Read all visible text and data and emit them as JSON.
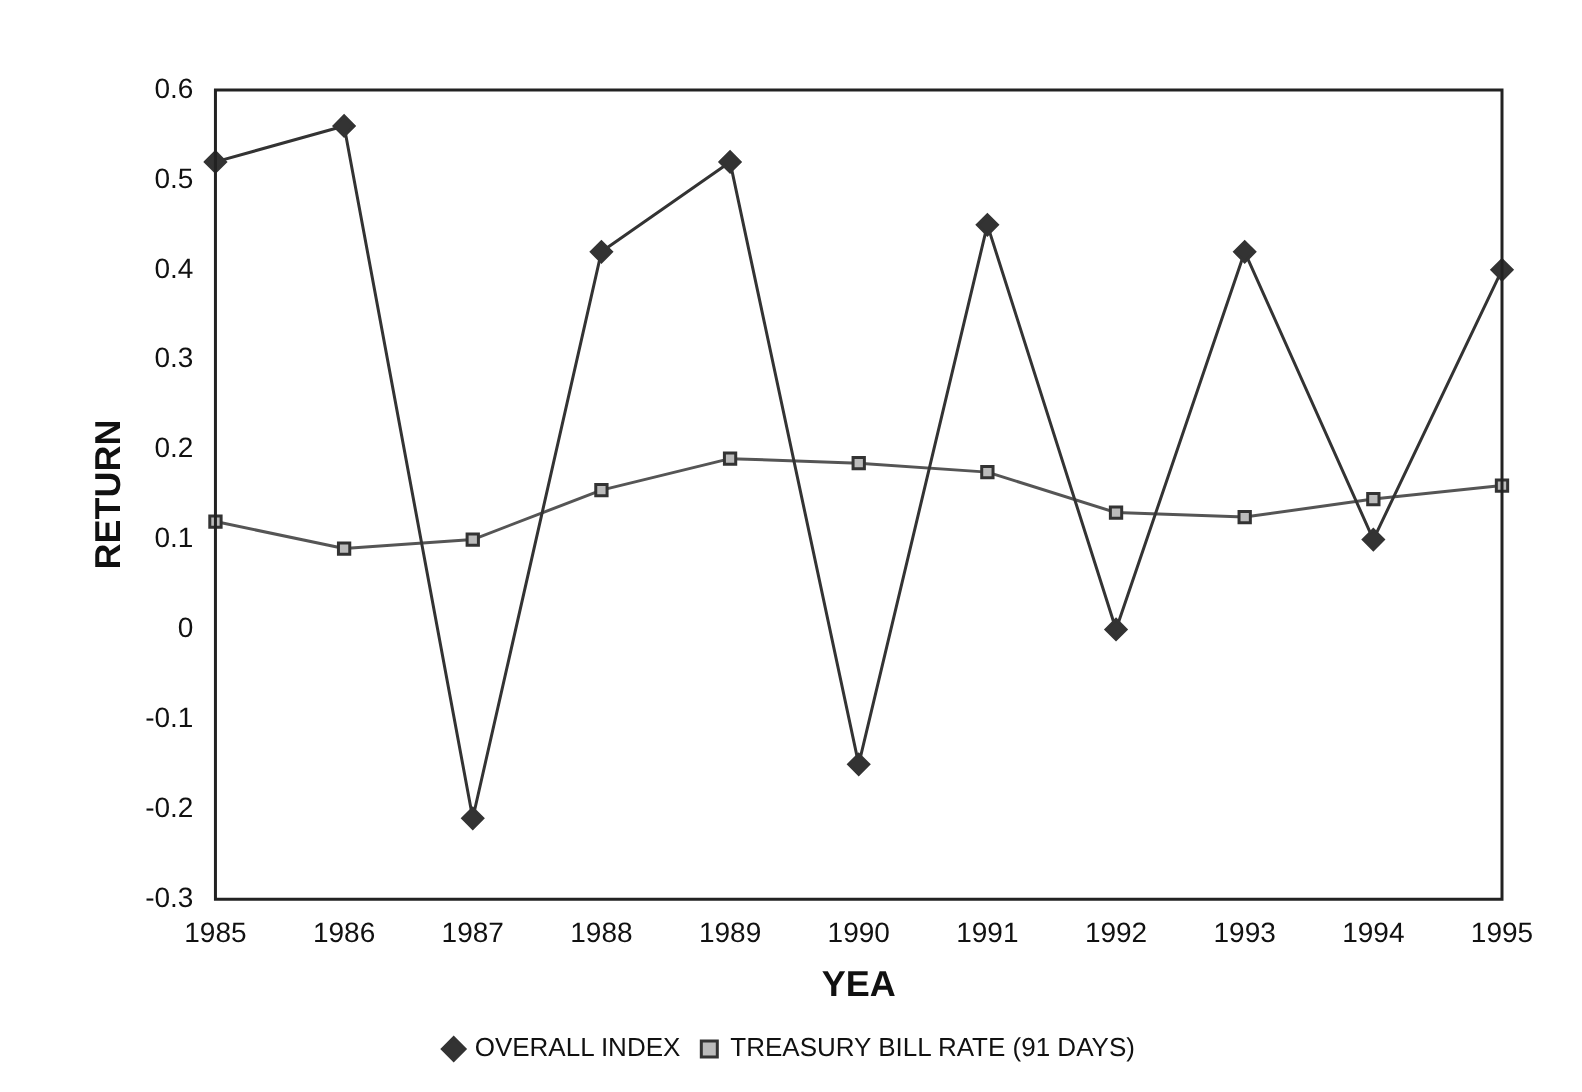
{
  "chart_data": {
    "type": "line",
    "xlabel": "YEA",
    "ylabel": "RETURN",
    "categories": [
      "1985",
      "1986",
      "1987",
      "1988",
      "1989",
      "1990",
      "1991",
      "1992",
      "1993",
      "1994",
      "1995"
    ],
    "ylim": [
      -0.3,
      0.6
    ],
    "yticks": [
      -0.3,
      -0.2,
      -0.1,
      0,
      0.1,
      0.2,
      0.3,
      0.4,
      0.5,
      0.6
    ],
    "grid": false,
    "legend": "bottom",
    "line_style": "solid",
    "series": [
      {
        "name": "OVERALL INDEX",
        "color": "#333333",
        "marker": "diamond",
        "values": [
          0.52,
          0.56,
          -0.21,
          0.42,
          0.52,
          -0.15,
          0.45,
          0.0,
          0.42,
          0.1,
          0.4
        ]
      },
      {
        "name": "TREASURY BILL RATE (91 DAYS)",
        "color": "#555555",
        "marker": "square",
        "values": [
          0.12,
          0.09,
          0.1,
          0.155,
          0.19,
          0.185,
          0.175,
          0.13,
          0.125,
          0.145,
          0.16
        ]
      }
    ]
  }
}
